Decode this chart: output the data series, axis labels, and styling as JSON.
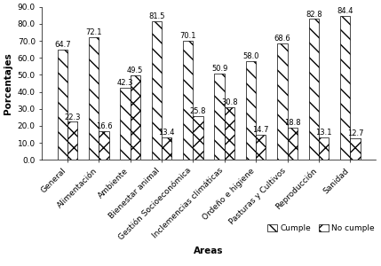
{
  "categories": [
    "General",
    "Alimentación",
    "Ambiente",
    "Bienestar animal",
    "Gestión Socioeconómica",
    "Inclemencias climáticas",
    "Ordeño e higiene",
    "Pasturas y Cultivos",
    "Reproducción",
    "Sanidad"
  ],
  "cumple": [
    64.7,
    72.1,
    42.3,
    81.5,
    70.1,
    50.9,
    58.0,
    68.6,
    82.8,
    84.4
  ],
  "no_cumple": [
    22.3,
    16.6,
    49.5,
    13.4,
    25.8,
    30.8,
    14.7,
    18.8,
    13.1,
    12.7
  ],
  "xlabel": "Areas",
  "ylabel": "Porcentajes",
  "ylim": [
    0,
    90
  ],
  "yticks": [
    0.0,
    10.0,
    20.0,
    30.0,
    40.0,
    50.0,
    60.0,
    70.0,
    80.0,
    90.0
  ],
  "legend_cumple": "Cumple",
  "legend_no_cumple": "No cumple",
  "bar_width": 0.32,
  "font_size_ticks": 6.5,
  "font_size_labels": 7.5,
  "font_size_annotations": 6.0,
  "hatch_cumple": "\\\\",
  "hatch_no_cumple": "xx"
}
